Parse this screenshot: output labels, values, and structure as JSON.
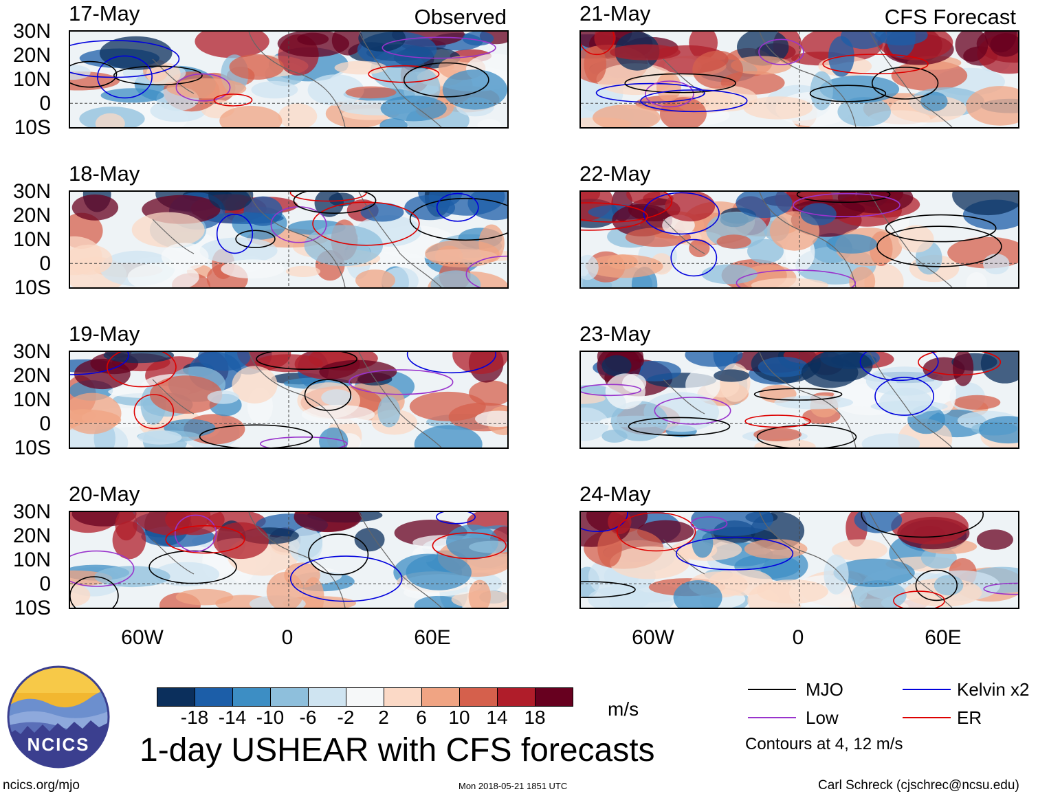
{
  "header": {
    "observed_label": "Observed",
    "forecast_label": "CFS Forecast"
  },
  "panels": {
    "observed": [
      {
        "date": "17-May"
      },
      {
        "date": "18-May"
      },
      {
        "date": "19-May"
      },
      {
        "date": "20-May"
      }
    ],
    "forecast": [
      {
        "date": "21-May"
      },
      {
        "date": "22-May"
      },
      {
        "date": "23-May"
      },
      {
        "date": "24-May"
      }
    ]
  },
  "lat_labels": [
    "30N",
    "20N",
    "10N",
    "0",
    "10S"
  ],
  "lon_labels": [
    "60W",
    "0",
    "60E"
  ],
  "colorbar": {
    "colors": [
      "#0b2f5c",
      "#1c5ea8",
      "#3d8ec4",
      "#8ebfdc",
      "#cfe4f1",
      "#f6f8f9",
      "#fbd9c6",
      "#f0a483",
      "#d5604c",
      "#b01d2a",
      "#67001f"
    ],
    "labels": [
      "-18",
      "-14",
      "-10",
      "-6",
      "-2",
      "2",
      "6",
      "10",
      "14",
      "18"
    ],
    "units": "m/s"
  },
  "legend": {
    "items": [
      {
        "label": "MJO",
        "color": "#000000"
      },
      {
        "label": "Kelvin x2",
        "color": "#0000dd"
      },
      {
        "label": "Low",
        "color": "#9933cc"
      },
      {
        "label": "ER",
        "color": "#dd0000"
      }
    ],
    "note": "Contours at 4, 12 m/s"
  },
  "logo": {
    "text": "NCICS"
  },
  "title": "1-day USHEAR with CFS forecasts",
  "footer": {
    "url": "ncics.org/mjo",
    "timestamp": "Mon 2018-05-21 1851 UTC",
    "credit": "Carl Schreck (cjschrec@ncsu.edu)"
  }
}
